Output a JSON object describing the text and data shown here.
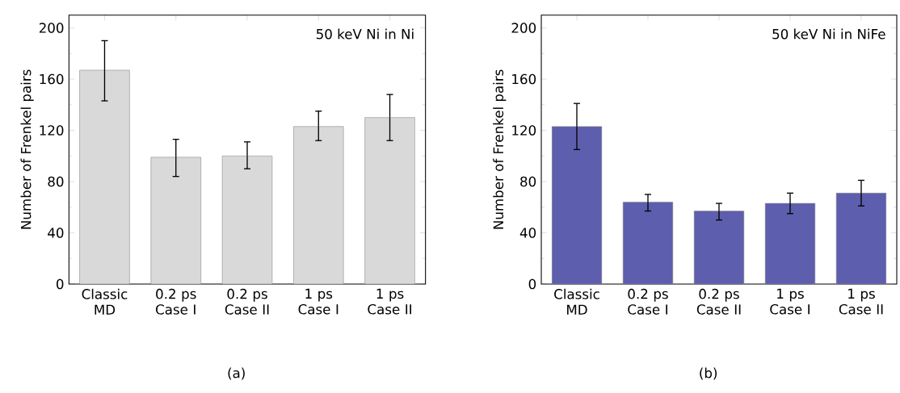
{
  "chart_data": [
    {
      "type": "bar",
      "ylabel": "Number of Frenkel pairs",
      "categories": [
        "Classic MD",
        "0.2 ps Case I",
        "0.2 ps Case II",
        "1 ps Case I",
        "1 ps Case II"
      ],
      "values": [
        167,
        99,
        100,
        123,
        130
      ],
      "errors": [
        [
          143,
          190
        ],
        [
          84,
          113
        ],
        [
          90,
          111
        ],
        [
          112,
          135
        ],
        [
          112,
          148
        ]
      ],
      "color": "#d9d9d9",
      "ylim": [
        0,
        210
      ],
      "yticks": [
        0,
        {
          "value": 20,
          "label": null
        },
        40,
        {
          "value": 60,
          "label": null
        },
        80,
        {
          "value": 100,
          "label": null
        },
        120,
        {
          "value": 140,
          "label": null
        },
        160,
        {
          "value": 180,
          "label": null
        },
        200
      ],
      "annotations": [
        "50 keV Ni in Ni",
        "(a)"
      ]
    },
    {
      "type": "bar",
      "ylabel": "Number of Frenkel pairs",
      "categories": [
        "Classic MD",
        "0.2 ps Case I",
        "0.2 ps Case II",
        "1 ps Case I",
        "1 ps Case II"
      ],
      "values": [
        123,
        64,
        57,
        63,
        71
      ],
      "errors": [
        [
          105,
          141
        ],
        [
          57,
          70
        ],
        [
          50,
          63
        ],
        [
          55,
          71
        ],
        [
          61,
          81
        ]
      ],
      "color": "#5e5eae",
      "ylim": [
        0,
        210
      ],
      "yticks": [
        0,
        {
          "value": 20,
          "label": null
        },
        40,
        {
          "value": 60,
          "label": null
        },
        80,
        {
          "value": 100,
          "label": null
        },
        120,
        {
          "value": 140,
          "label": null
        },
        160,
        {
          "value": 180,
          "label": null
        },
        200
      ],
      "annotations": [
        "50 keV Ni in NiFe",
        "(b)"
      ]
    }
  ]
}
